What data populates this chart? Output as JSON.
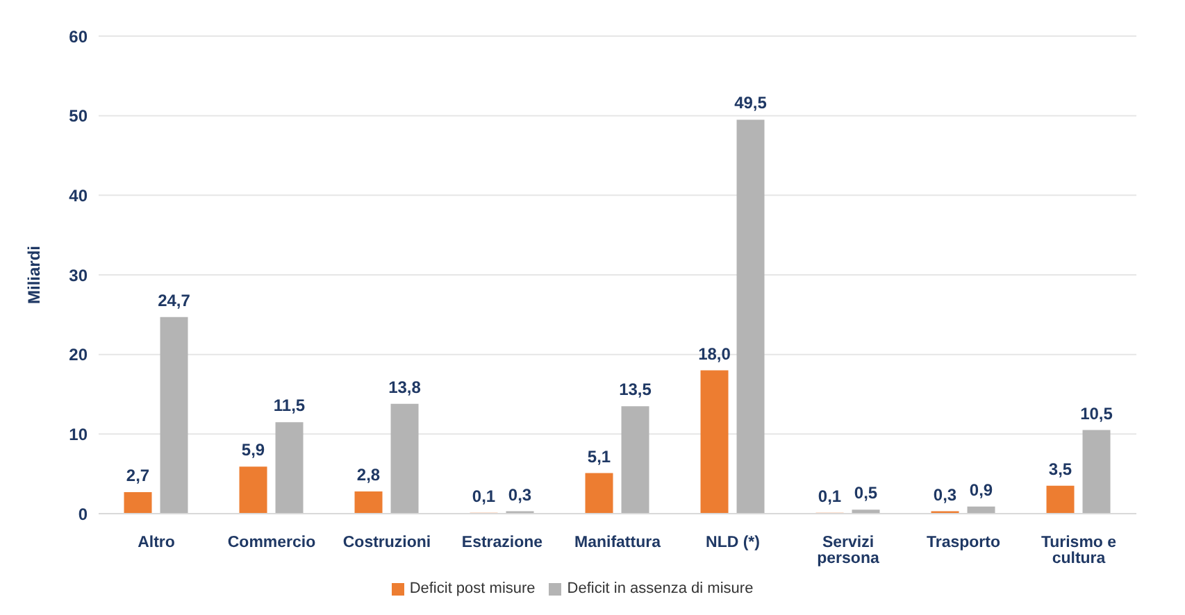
{
  "chart_data": {
    "type": "bar",
    "ylabel": "Miliardi",
    "categories": [
      "Altro",
      "Commercio",
      "Costruzioni",
      "Estrazione",
      "Manifattura",
      "NLD (*)",
      "Servizi persona",
      "Trasporto",
      "Turismo e cultura"
    ],
    "series": [
      {
        "name": "Deficit post misure",
        "color": "#ed7d31",
        "values": [
          2.7,
          5.9,
          2.8,
          0.1,
          5.1,
          18.0,
          0.1,
          0.3,
          3.5
        ],
        "value_labels": [
          "2,7",
          "5,9",
          "2,8",
          "0,1",
          "5,1",
          "18,0",
          "0,1",
          "0,3",
          "3,5"
        ]
      },
      {
        "name": "Deficit in assenza di misure",
        "color": "#b4b4b4",
        "values": [
          24.7,
          11.5,
          13.8,
          0.3,
          13.5,
          49.5,
          0.5,
          0.9,
          10.5
        ],
        "value_labels": [
          "24,7",
          "11,5",
          "13,8",
          "0,3",
          "13,5",
          "49,5",
          "0,5",
          "0,9",
          "10,5"
        ]
      }
    ],
    "ylim": [
      0,
      60
    ],
    "yticks": [
      0,
      10,
      20,
      30,
      40,
      50,
      60
    ],
    "grid": "y",
    "legend": "bottom"
  }
}
